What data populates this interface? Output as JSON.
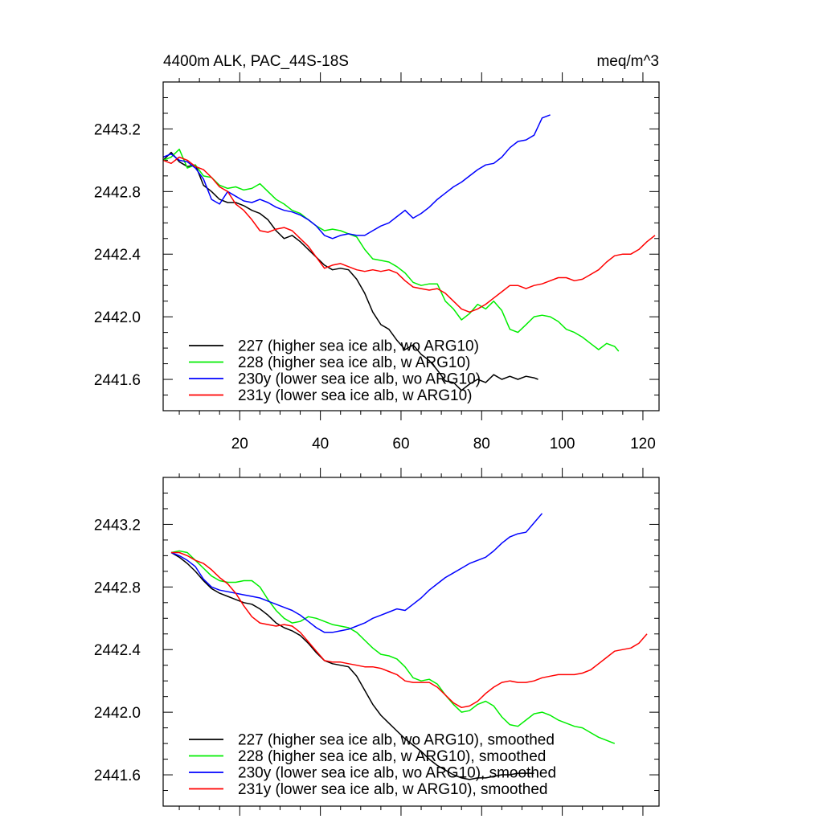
{
  "chart_data": [
    {
      "type": "line",
      "title_left": "4400m ALK, PAC_44S-18S",
      "title_right": "meq/m^3",
      "xlabel": "",
      "ylabel": "",
      "xlim": [
        1,
        124
      ],
      "ylim": [
        2441.4,
        2443.5
      ],
      "xticks": [
        20,
        40,
        60,
        80,
        100,
        120
      ],
      "xtick_labels": [
        "20",
        "40",
        "60",
        "80",
        "100",
        "120"
      ],
      "yticks": [
        2441.6,
        2442.0,
        2442.4,
        2442.8,
        2443.2
      ],
      "ytick_labels": [
        "2441.6",
        "2442.0",
        "2442.4",
        "2442.8",
        "2443.2"
      ],
      "legend_position": "bottom-left",
      "series": [
        {
          "name": "227 (higher sea ice alb, wo ARG10)",
          "color": "#000000",
          "x": [
            1,
            3,
            5,
            7,
            9,
            11,
            13,
            15,
            17,
            19,
            21,
            23,
            25,
            27,
            29,
            31,
            33,
            35,
            37,
            39,
            41,
            43,
            45,
            47,
            49,
            51,
            53,
            55,
            57,
            59,
            61,
            63,
            65,
            67,
            69,
            71,
            73,
            75,
            77,
            79,
            81,
            83,
            85,
            87,
            89,
            91,
            93,
            94
          ],
          "y": [
            2443.0,
            2443.05,
            2442.99,
            2442.96,
            2442.97,
            2442.84,
            2442.8,
            2442.75,
            2442.73,
            2442.73,
            2442.71,
            2442.68,
            2442.66,
            2442.62,
            2442.55,
            2442.5,
            2442.52,
            2442.48,
            2442.43,
            2442.38,
            2442.33,
            2442.3,
            2442.31,
            2442.3,
            2442.24,
            2442.15,
            2442.03,
            2441.95,
            2441.92,
            2441.85,
            2441.79,
            2441.82,
            2441.76,
            2441.72,
            2441.66,
            2441.59,
            2441.58,
            2441.53,
            2441.57,
            2441.6,
            2441.58,
            2441.63,
            2441.6,
            2441.62,
            2441.6,
            2441.62,
            2441.61,
            2441.6
          ]
        },
        {
          "name": "228 (higher sea ice alb, w ARG10)",
          "color": "#00ee00",
          "x": [
            1,
            3,
            5,
            7,
            9,
            11,
            13,
            15,
            17,
            19,
            21,
            23,
            25,
            27,
            29,
            31,
            33,
            35,
            37,
            39,
            41,
            43,
            45,
            47,
            49,
            51,
            53,
            55,
            57,
            59,
            61,
            63,
            65,
            67,
            69,
            71,
            73,
            75,
            77,
            79,
            81,
            83,
            85,
            87,
            89,
            91,
            93,
            95,
            97,
            99,
            101,
            103,
            105,
            107,
            109,
            111,
            113,
            114
          ],
          "y": [
            2443.0,
            2443.02,
            2443.07,
            2442.95,
            2442.97,
            2442.9,
            2442.89,
            2442.84,
            2442.82,
            2442.83,
            2442.81,
            2442.82,
            2442.85,
            2442.8,
            2442.75,
            2442.72,
            2442.68,
            2442.66,
            2442.62,
            2442.58,
            2442.55,
            2442.56,
            2442.55,
            2442.53,
            2442.51,
            2442.43,
            2442.37,
            2442.36,
            2442.35,
            2442.32,
            2442.28,
            2442.22,
            2442.2,
            2442.21,
            2442.21,
            2442.1,
            2442.05,
            2441.98,
            2442.02,
            2442.08,
            2442.05,
            2442.1,
            2442.04,
            2441.92,
            2441.9,
            2441.95,
            2442.0,
            2442.01,
            2442.0,
            2441.97,
            2441.92,
            2441.9,
            2441.87,
            2441.83,
            2441.79,
            2441.83,
            2441.81,
            2441.78
          ]
        },
        {
          "name": "230y (lower sea ice alb, wo ARG10)",
          "color": "#0000ff",
          "x": [
            1,
            3,
            5,
            7,
            9,
            11,
            13,
            15,
            17,
            19,
            21,
            23,
            25,
            27,
            29,
            31,
            33,
            35,
            37,
            39,
            41,
            43,
            45,
            47,
            49,
            51,
            53,
            55,
            57,
            59,
            61,
            63,
            65,
            67,
            69,
            71,
            73,
            75,
            77,
            79,
            81,
            83,
            85,
            87,
            89,
            91,
            93,
            95,
            97
          ],
          "y": [
            2443.02,
            2443.04,
            2443.0,
            2442.99,
            2442.95,
            2442.88,
            2442.75,
            2442.72,
            2442.8,
            2442.77,
            2442.74,
            2442.73,
            2442.75,
            2442.73,
            2442.7,
            2442.68,
            2442.67,
            2442.65,
            2442.62,
            2442.58,
            2442.52,
            2442.5,
            2442.52,
            2442.53,
            2442.52,
            2442.52,
            2442.55,
            2442.58,
            2442.6,
            2442.64,
            2442.68,
            2442.63,
            2442.66,
            2442.7,
            2442.75,
            2442.79,
            2442.83,
            2442.86,
            2442.9,
            2442.94,
            2442.97,
            2442.98,
            2443.02,
            2443.08,
            2443.12,
            2443.13,
            2443.16,
            2443.27,
            2443.29
          ]
        },
        {
          "name": "231y (lower sea ice alb, w ARG10)",
          "color": "#ff0000",
          "x": [
            1,
            3,
            5,
            7,
            9,
            11,
            13,
            15,
            17,
            19,
            21,
            23,
            25,
            27,
            29,
            31,
            33,
            35,
            37,
            39,
            41,
            43,
            45,
            47,
            49,
            51,
            53,
            55,
            57,
            59,
            61,
            63,
            65,
            67,
            69,
            71,
            73,
            75,
            77,
            79,
            81,
            83,
            85,
            87,
            89,
            91,
            93,
            95,
            97,
            99,
            101,
            103,
            105,
            107,
            109,
            111,
            113,
            115,
            117,
            119,
            121,
            123
          ],
          "y": [
            2443.0,
            2442.98,
            2443.02,
            2443.0,
            2442.96,
            2442.94,
            2442.89,
            2442.83,
            2442.8,
            2442.72,
            2442.68,
            2442.62,
            2442.55,
            2442.54,
            2442.56,
            2442.57,
            2442.55,
            2442.5,
            2442.45,
            2442.38,
            2442.31,
            2442.33,
            2442.34,
            2442.32,
            2442.3,
            2442.29,
            2442.3,
            2442.29,
            2442.3,
            2442.28,
            2442.23,
            2442.19,
            2442.18,
            2442.17,
            2442.18,
            2442.15,
            2442.1,
            2442.05,
            2442.03,
            2442.05,
            2442.08,
            2442.12,
            2442.16,
            2442.2,
            2442.2,
            2442.18,
            2442.2,
            2442.21,
            2442.23,
            2442.25,
            2442.25,
            2442.23,
            2442.24,
            2442.27,
            2442.3,
            2442.35,
            2442.39,
            2442.4,
            2442.4,
            2442.43,
            2442.48,
            2442.52
          ]
        }
      ]
    },
    {
      "type": "line",
      "title_left": "",
      "title_right": "",
      "xlabel": "",
      "ylabel": "",
      "xlim": [
        1,
        124
      ],
      "ylim": [
        2441.4,
        2443.5
      ],
      "xticks": [
        20,
        40,
        60,
        80,
        100,
        120
      ],
      "xtick_labels": [],
      "yticks": [
        2441.6,
        2442.0,
        2442.4,
        2442.8,
        2443.2
      ],
      "ytick_labels": [
        "2441.6",
        "2442.0",
        "2442.4",
        "2442.8",
        "2443.2"
      ],
      "legend_position": "bottom-left",
      "series": [
        {
          "name": "227 (higher sea ice alb, wo ARG10), smoothed",
          "color": "#000000",
          "x": [
            3,
            5,
            7,
            9,
            11,
            13,
            15,
            17,
            19,
            21,
            23,
            25,
            27,
            29,
            31,
            33,
            35,
            37,
            39,
            41,
            43,
            45,
            47,
            49,
            51,
            53,
            55,
            57,
            59,
            61,
            63,
            65,
            67,
            69,
            71,
            73,
            75,
            77,
            79,
            81,
            83,
            85,
            87,
            89,
            91,
            93
          ],
          "y": [
            2443.02,
            2442.99,
            2442.95,
            2442.9,
            2442.84,
            2442.79,
            2442.76,
            2442.74,
            2442.72,
            2442.7,
            2442.69,
            2442.66,
            2442.62,
            2442.57,
            2442.54,
            2442.52,
            2442.49,
            2442.44,
            2442.38,
            2442.33,
            2442.31,
            2442.3,
            2442.29,
            2442.23,
            2442.14,
            2442.05,
            2441.98,
            2441.93,
            2441.88,
            2441.83,
            2441.79,
            2441.75,
            2441.7,
            2441.66,
            2441.63,
            2441.6,
            2441.58,
            2441.57,
            2441.58,
            2441.58,
            2441.59,
            2441.6,
            2441.6,
            2441.61,
            2441.61,
            2441.61
          ]
        },
        {
          "name": "228 (higher sea ice alb, w ARG10), smoothed",
          "color": "#00ee00",
          "x": [
            3,
            5,
            7,
            9,
            11,
            13,
            15,
            17,
            19,
            21,
            23,
            25,
            27,
            29,
            31,
            33,
            35,
            37,
            39,
            41,
            43,
            45,
            47,
            49,
            51,
            53,
            55,
            57,
            59,
            61,
            63,
            65,
            67,
            69,
            71,
            73,
            75,
            77,
            79,
            81,
            83,
            85,
            87,
            89,
            91,
            93,
            95,
            97,
            99,
            101,
            103,
            105,
            107,
            109,
            111,
            113
          ],
          "y": [
            2443.02,
            2443.03,
            2443.02,
            2442.97,
            2442.92,
            2442.87,
            2442.84,
            2442.83,
            2442.83,
            2442.84,
            2442.84,
            2442.8,
            2442.72,
            2442.65,
            2442.6,
            2442.57,
            2442.58,
            2442.61,
            2442.6,
            2442.58,
            2442.56,
            2442.55,
            2442.54,
            2442.51,
            2442.46,
            2442.41,
            2442.37,
            2442.36,
            2442.34,
            2442.29,
            2442.22,
            2442.2,
            2442.21,
            2442.18,
            2442.11,
            2442.05,
            2442.0,
            2442.01,
            2442.05,
            2442.07,
            2442.04,
            2441.97,
            2441.92,
            2441.91,
            2441.95,
            2441.99,
            2442.0,
            2441.98,
            2441.95,
            2441.93,
            2441.91,
            2441.9,
            2441.87,
            2441.84,
            2441.82,
            2441.8
          ]
        },
        {
          "name": "230y (lower sea ice alb, wo ARG10), smoothed",
          "color": "#0000ff",
          "x": [
            3,
            5,
            7,
            9,
            11,
            13,
            15,
            17,
            19,
            21,
            23,
            25,
            27,
            29,
            31,
            33,
            35,
            37,
            39,
            41,
            43,
            45,
            47,
            49,
            51,
            53,
            55,
            57,
            59,
            61,
            63,
            65,
            67,
            69,
            71,
            73,
            75,
            77,
            79,
            81,
            83,
            85,
            87,
            89,
            91,
            93,
            95
          ],
          "y": [
            2443.02,
            2443.0,
            2442.97,
            2442.93,
            2442.85,
            2442.8,
            2442.78,
            2442.77,
            2442.76,
            2442.75,
            2442.74,
            2442.73,
            2442.71,
            2442.69,
            2442.67,
            2442.65,
            2442.62,
            2442.58,
            2442.54,
            2442.51,
            2442.51,
            2442.52,
            2442.53,
            2442.55,
            2442.57,
            2442.6,
            2442.62,
            2442.64,
            2442.66,
            2442.65,
            2442.69,
            2442.73,
            2442.78,
            2442.82,
            2442.86,
            2442.89,
            2442.92,
            2442.95,
            2442.97,
            2442.99,
            2443.03,
            2443.08,
            2443.12,
            2443.14,
            2443.15,
            2443.21,
            2443.27
          ]
        },
        {
          "name": "231y (lower sea ice alb, w ARG10), smoothed",
          "color": "#ff0000",
          "x": [
            3,
            5,
            7,
            9,
            11,
            13,
            15,
            17,
            19,
            21,
            23,
            25,
            27,
            29,
            31,
            33,
            35,
            37,
            39,
            41,
            43,
            45,
            47,
            49,
            51,
            53,
            55,
            57,
            59,
            61,
            63,
            65,
            67,
            69,
            71,
            73,
            75,
            77,
            79,
            81,
            83,
            85,
            87,
            89,
            91,
            93,
            95,
            97,
            99,
            101,
            103,
            105,
            107,
            109,
            111,
            113,
            115,
            117,
            119,
            121
          ],
          "y": [
            2443.02,
            2443.02,
            2443.0,
            2442.97,
            2442.95,
            2442.91,
            2442.86,
            2442.82,
            2442.76,
            2442.68,
            2442.61,
            2442.57,
            2442.56,
            2442.55,
            2442.56,
            2442.55,
            2442.51,
            2442.45,
            2442.39,
            2442.33,
            2442.32,
            2442.32,
            2442.31,
            2442.3,
            2442.29,
            2442.29,
            2442.28,
            2442.26,
            2442.24,
            2442.2,
            2442.19,
            2442.19,
            2442.19,
            2442.16,
            2442.11,
            2442.06,
            2442.03,
            2442.04,
            2442.07,
            2442.12,
            2442.16,
            2442.19,
            2442.2,
            2442.19,
            2442.19,
            2442.2,
            2442.22,
            2442.23,
            2442.24,
            2442.24,
            2442.24,
            2442.25,
            2442.27,
            2442.31,
            2442.35,
            2442.39,
            2442.4,
            2442.41,
            2442.44,
            2442.5
          ]
        }
      ]
    }
  ]
}
